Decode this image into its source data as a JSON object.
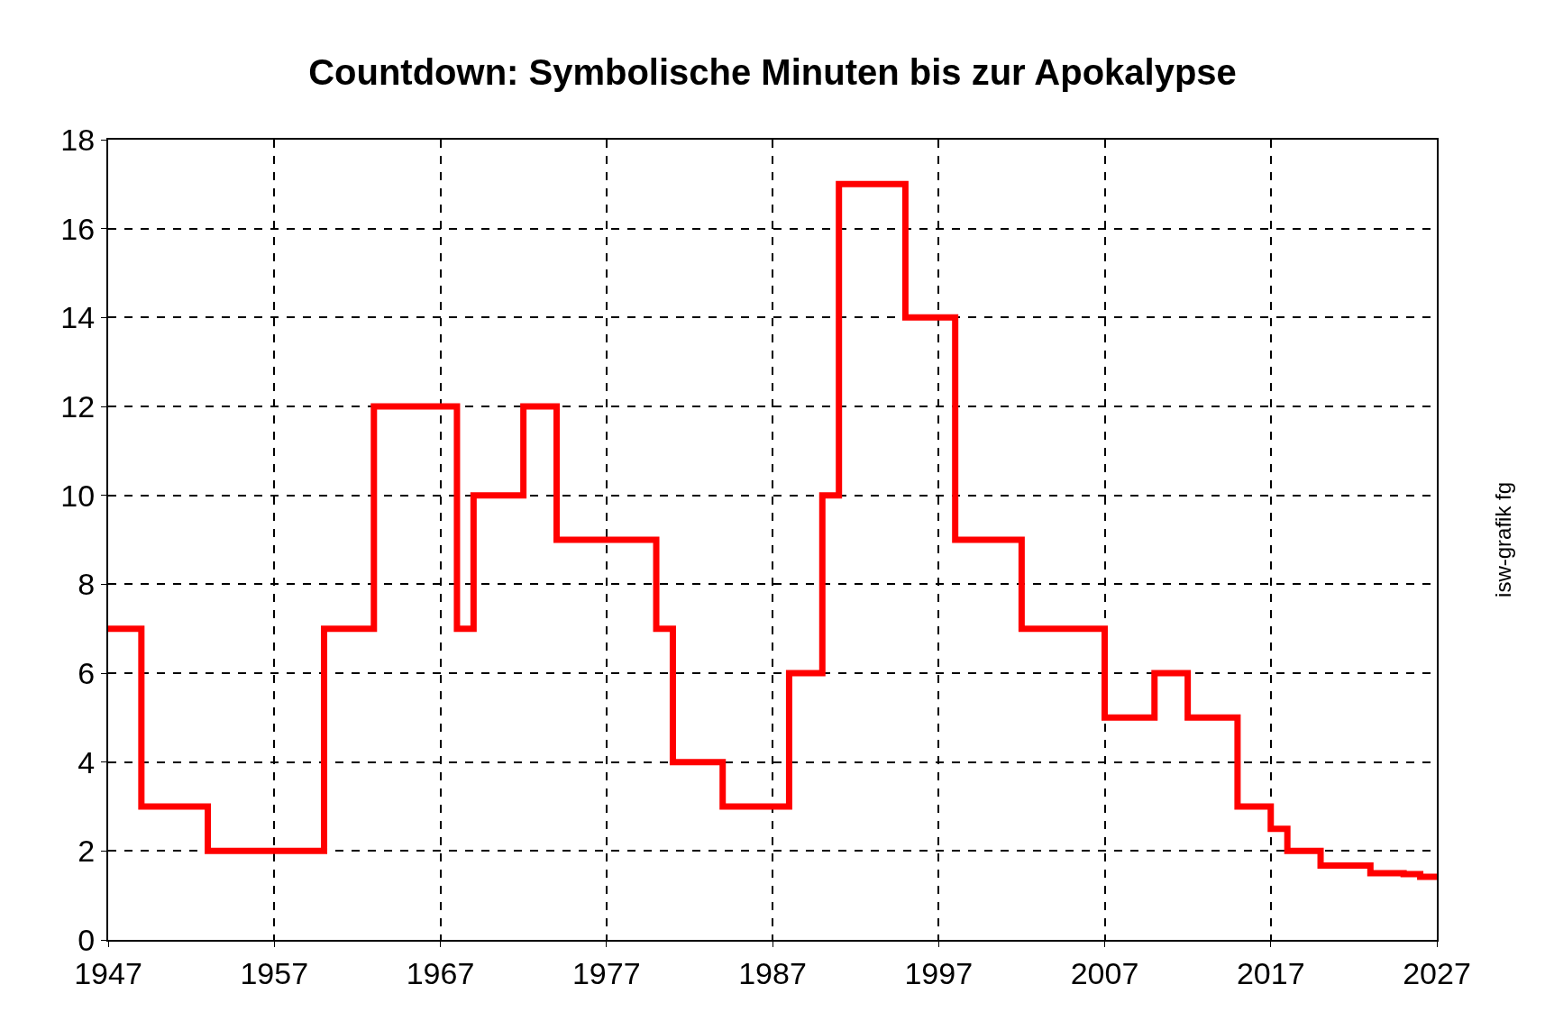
{
  "chart_data": {
    "type": "step",
    "title": "Countdown: Symbolische Minuten bis zur Apokalypse",
    "x": [
      1947,
      1949,
      1953,
      1960,
      1963,
      1968,
      1969,
      1972,
      1974,
      1980,
      1981,
      1984,
      1988,
      1990,
      1991,
      1995,
      1998,
      2002,
      2007,
      2010,
      2012,
      2015,
      2017,
      2018,
      2020,
      2023,
      2025,
      2026,
      2027
    ],
    "series": [
      {
        "color": "#ff0000",
        "values": [
          7,
          3,
          2,
          7,
          12,
          7,
          10,
          12,
          9,
          7,
          4,
          3,
          6,
          10,
          17,
          14,
          9,
          7,
          5,
          6,
          5,
          3,
          2.5,
          2,
          1.67,
          1.5,
          1.48,
          1.42,
          1.42
        ]
      }
    ],
    "xlim": [
      1947,
      2027
    ],
    "xticks": [
      1947,
      1957,
      1967,
      1977,
      1987,
      1997,
      2007,
      2017,
      2027
    ],
    "ylim": [
      0,
      18
    ],
    "yticks": [
      0,
      2,
      4,
      6,
      8,
      10,
      12,
      14,
      16,
      18
    ],
    "grid": true,
    "line_style": "solid",
    "marker": "none",
    "annotations": [
      "isw-grafik fg"
    ]
  }
}
